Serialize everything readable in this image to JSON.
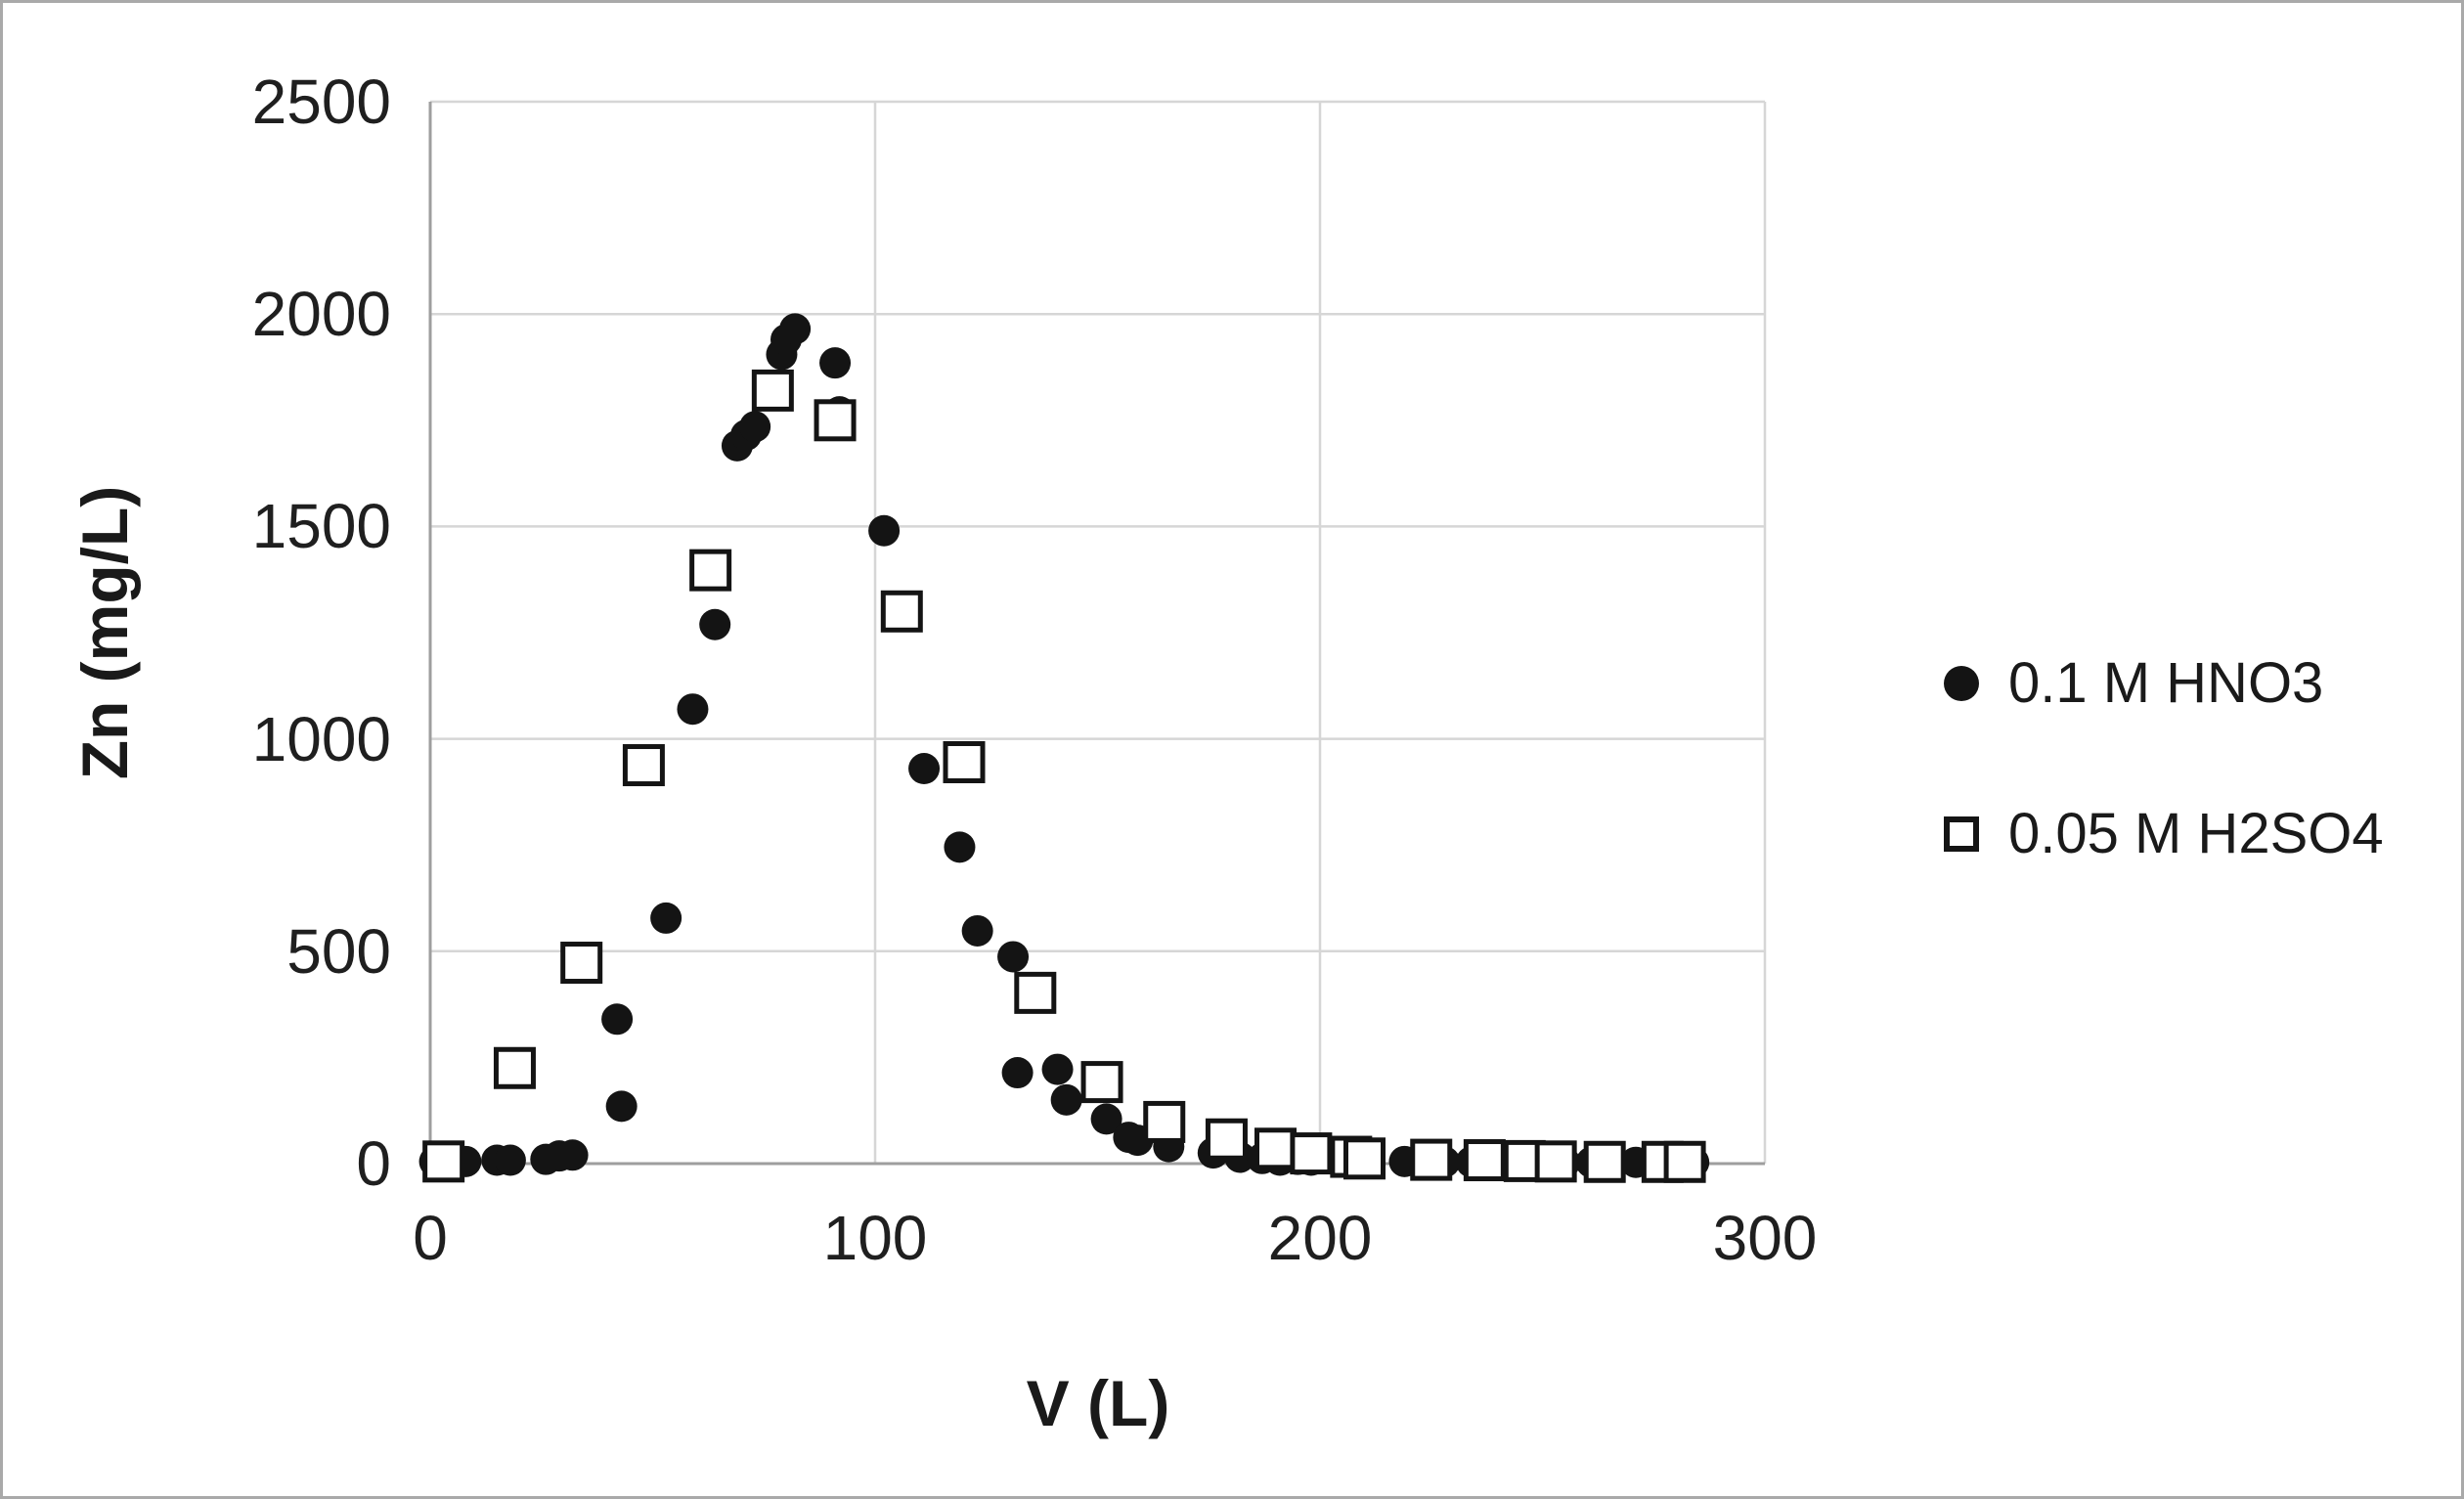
{
  "figure": {
    "background": "#ffffff",
    "border_color": "#a9a9a9"
  },
  "chart_data": {
    "type": "scatter",
    "title": "",
    "xlabel": "V (L)",
    "ylabel": "Zn (mg/L)",
    "xlim": [
      0,
      300
    ],
    "ylim": [
      0,
      2500
    ],
    "x_ticks": [
      "0",
      "100",
      "200",
      "300"
    ],
    "y_ticks": [
      "0",
      "500",
      "1000",
      "1500",
      "2000",
      "2500"
    ],
    "grid": true,
    "gridline_color": "#d6d6d6",
    "axis_color": "#9e9e9e",
    "marker_color": "#141414",
    "legend_position": "right",
    "series": [
      {
        "name": "0.1 M HNO3",
        "marker": "filled-circle",
        "points": [
          [
            1,
            5
          ],
          [
            4,
            5
          ],
          [
            8,
            5
          ],
          [
            15,
            8
          ],
          [
            18,
            8
          ],
          [
            26,
            10
          ],
          [
            29,
            18
          ],
          [
            32,
            20
          ],
          [
            42,
            340
          ],
          [
            43,
            135
          ],
          [
            53,
            578
          ],
          [
            59,
            1070
          ],
          [
            64,
            1269
          ],
          [
            69,
            1690
          ],
          [
            71,
            1715
          ],
          [
            73,
            1735
          ],
          [
            79,
            1905
          ],
          [
            80,
            1940
          ],
          [
            82,
            1965
          ],
          [
            91,
            1885
          ],
          [
            92,
            1770
          ],
          [
            102,
            1490
          ],
          [
            111,
            930
          ],
          [
            119,
            745
          ],
          [
            123,
            548
          ],
          [
            131,
            487
          ],
          [
            132,
            214
          ],
          [
            141,
            222
          ],
          [
            143,
            150
          ],
          [
            152,
            105
          ],
          [
            157,
            62
          ],
          [
            159,
            55
          ],
          [
            166,
            40
          ],
          [
            176,
            25
          ],
          [
            182,
            15
          ],
          [
            187,
            12
          ],
          [
            191,
            8
          ],
          [
            195,
            10
          ],
          [
            198,
            8
          ],
          [
            205,
            6
          ],
          [
            210,
            5
          ],
          [
            219,
            5
          ],
          [
            228,
            4
          ],
          [
            234,
            4
          ],
          [
            241,
            4
          ],
          [
            244,
            3
          ],
          [
            250,
            3
          ],
          [
            255,
            3
          ],
          [
            261,
            3
          ],
          [
            266,
            3
          ],
          [
            271,
            3
          ],
          [
            277,
            3
          ],
          [
            281,
            3
          ],
          [
            284,
            3
          ]
        ]
      },
      {
        "name": "0.05 M H2SO4",
        "marker": "open-square",
        "points": [
          [
            3,
            5
          ],
          [
            19,
            225
          ],
          [
            34,
            473
          ],
          [
            48,
            938
          ],
          [
            63,
            1397
          ],
          [
            77,
            1820
          ],
          [
            91,
            1750
          ],
          [
            106,
            1300
          ],
          [
            120,
            945
          ],
          [
            136,
            402
          ],
          [
            151,
            192
          ],
          [
            165,
            98
          ],
          [
            179,
            57
          ],
          [
            190,
            35
          ],
          [
            198,
            24
          ],
          [
            207,
            16
          ],
          [
            210,
            12
          ],
          [
            225,
            9
          ],
          [
            237,
            8
          ],
          [
            246,
            6
          ],
          [
            253,
            5
          ],
          [
            264,
            4
          ],
          [
            277,
            4
          ],
          [
            282,
            4
          ]
        ]
      }
    ]
  }
}
